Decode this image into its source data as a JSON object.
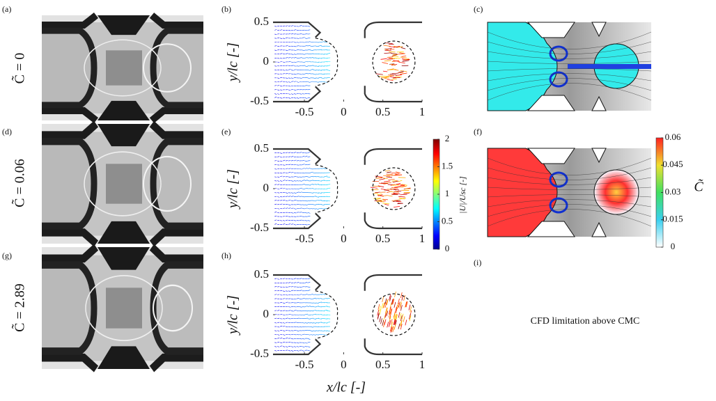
{
  "panel_labels": [
    "(a)",
    "(b)",
    "(c)",
    "(d)",
    "(e)",
    "(f)",
    "(g)",
    "(h)",
    "(i)"
  ],
  "row_labels": [
    "C̃ = 0",
    "C̃ = 0.06",
    "C̃ = 2.89"
  ],
  "quiver": {
    "xlabel": "x/lc [-]",
    "ylabel": "y/lc [-]",
    "xlim": [
      -0.9,
      1
    ],
    "ylim": [
      -0.5,
      0.5
    ],
    "xticks": [
      -0.5,
      0,
      0.5,
      1
    ],
    "yticks": [
      -0.5,
      0,
      0.5
    ]
  },
  "velocity_colorbar": {
    "label": "|U|/Usc [-]",
    "lim": [
      0,
      2
    ],
    "ticks": [
      0,
      0.5,
      1,
      1.5,
      2
    ]
  },
  "concentration_colorbar": {
    "label": "C̃",
    "lim": [
      0,
      0.06
    ],
    "ticks": [
      0,
      0.015,
      0.03,
      0.045,
      0.06
    ]
  },
  "note": "CFD limitation above CMC"
}
